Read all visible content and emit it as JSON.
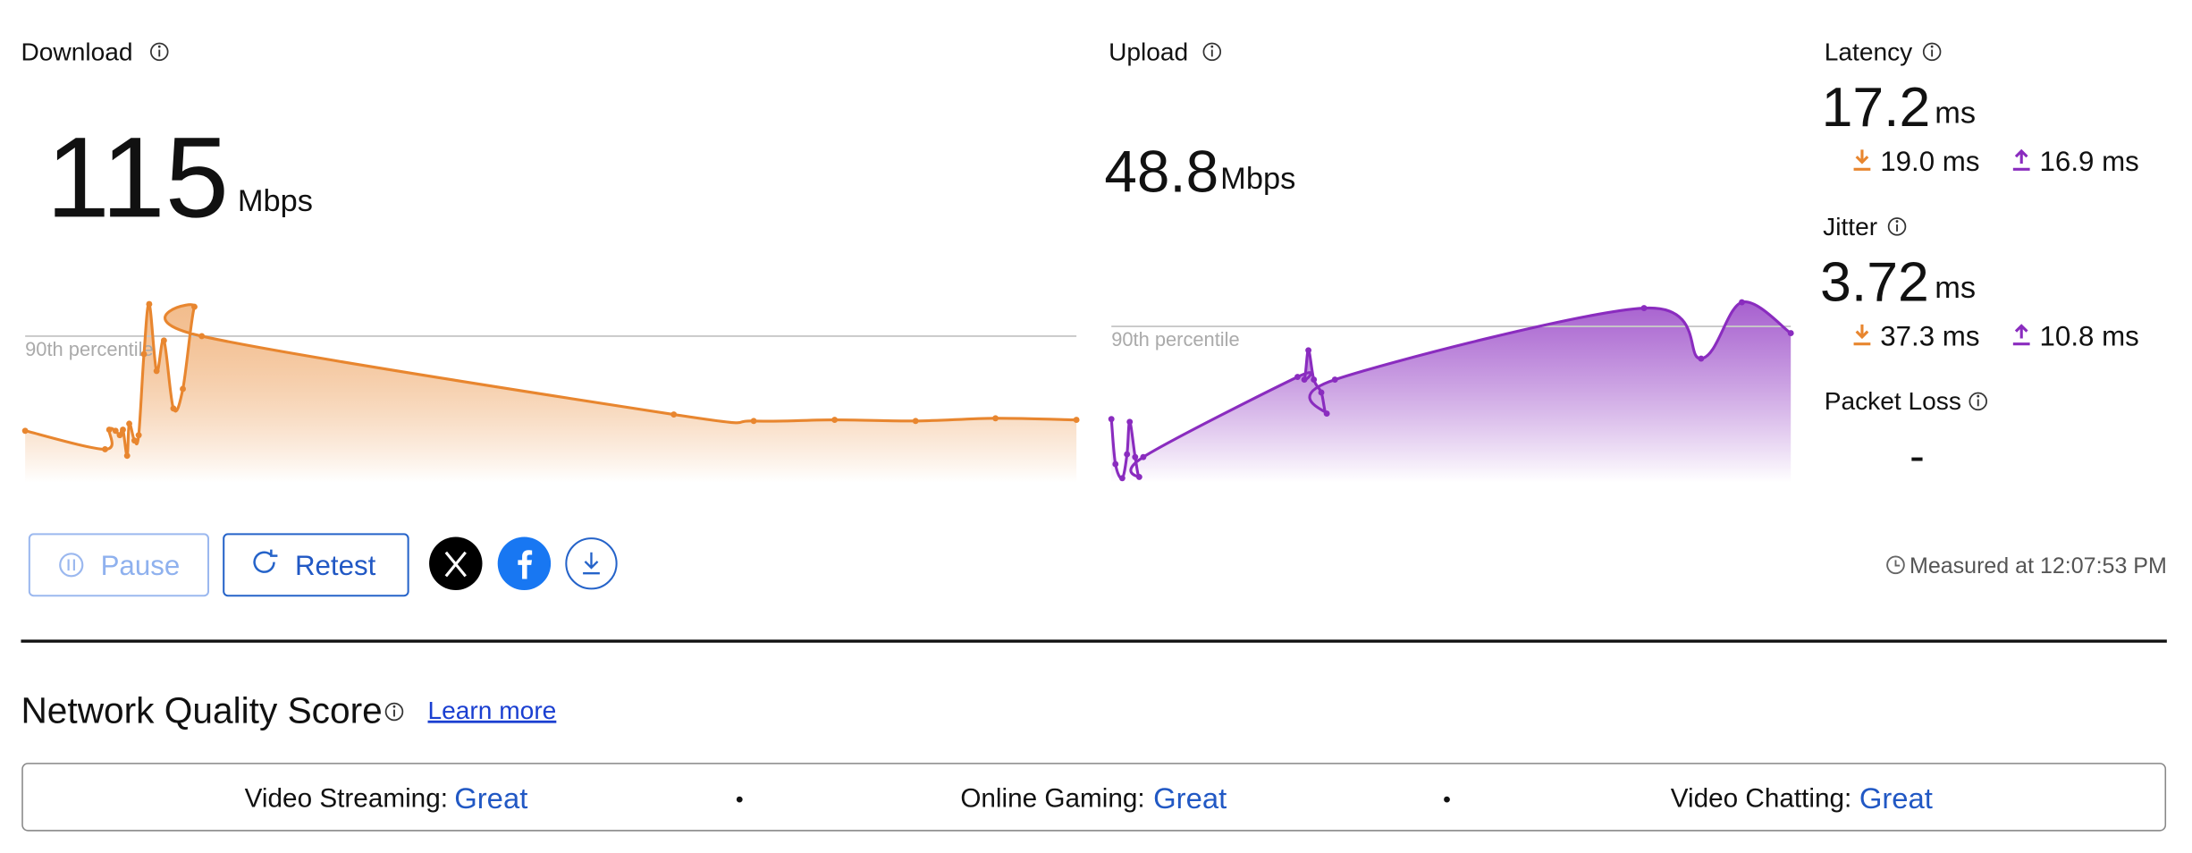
{
  "download": {
    "label": "Download",
    "value": "115",
    "unit": "Mbps",
    "graph": {
      "type": "area",
      "color": "#e8862f",
      "percentile_label": "90th percentile",
      "percentile_value": 269,
      "xlim": [
        0,
        100
      ],
      "ylim": [
        0,
        360
      ],
      "x": [
        0,
        7.6,
        8.0,
        8.6,
        9.0,
        9.3,
        9.7,
        9.9,
        10.4,
        10.8,
        11.3,
        11.8,
        12.5,
        13.2,
        14.1,
        15.0,
        16.1,
        16.8,
        61.7,
        69.3,
        77.0,
        84.7,
        92.3,
        100
      ],
      "values": [
        95,
        61,
        97,
        95,
        87,
        97,
        49,
        108,
        77,
        87,
        236,
        328,
        205,
        261,
        136,
        172,
        323,
        269,
        125,
        113,
        115,
        113,
        118,
        115
      ]
    }
  },
  "upload": {
    "label": "Upload",
    "value": "48.8",
    "unit": "Mbps",
    "graph": {
      "type": "area",
      "color": "#8a2cbf",
      "percentile_label": "90th percentile",
      "percentile_value": 51,
      "xlim": [
        0,
        100
      ],
      "ylim": [
        0,
        64
      ],
      "x": [
        0,
        0.6,
        1.6,
        2.3,
        2.7,
        3.5,
        4.1,
        4.7,
        27.4,
        28.4,
        29.0,
        29.8,
        30.9,
        31.7,
        32.9,
        78.4,
        86.8,
        92.8,
        100
      ],
      "values": [
        20.7,
        6.0,
        1.4,
        9.2,
        19.8,
        8.3,
        1.8,
        8.3,
        34.5,
        33.6,
        43.2,
        33.6,
        29.4,
        22.5,
        33.6,
        57.0,
        40.5,
        58.9,
        48.8
      ]
    }
  },
  "latency": {
    "label": "Latency",
    "value": "17.2",
    "unit": "ms",
    "download": "19.0 ms",
    "upload": "16.9 ms"
  },
  "jitter": {
    "label": "Jitter",
    "value": "3.72",
    "unit": "ms",
    "download": "37.3 ms",
    "upload": "10.8 ms"
  },
  "packet_loss": {
    "label": "Packet Loss",
    "value": "-"
  },
  "buttons": {
    "pause": "Pause",
    "retest": "Retest"
  },
  "measured": "Measured at 12:07:53 PM",
  "quality": {
    "title": "Network Quality Score",
    "link": "Learn more",
    "items": [
      {
        "label": "Video Streaming:",
        "rating": "Great"
      },
      {
        "label": "Online Gaming:",
        "rating": "Great"
      },
      {
        "label": "Video Chatting:",
        "rating": "Great"
      }
    ],
    "separator": "•"
  }
}
